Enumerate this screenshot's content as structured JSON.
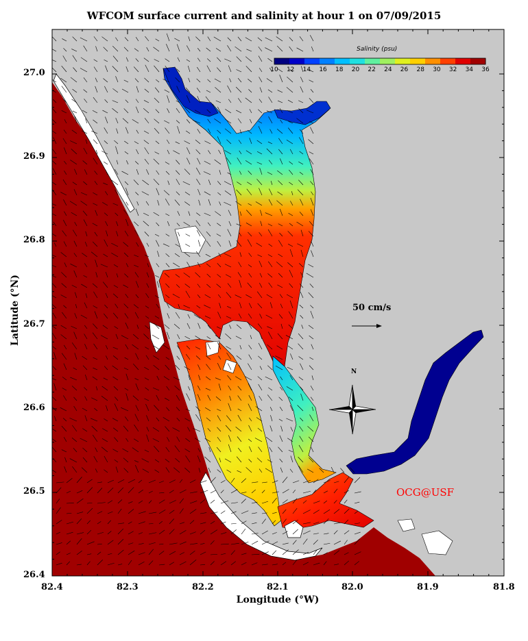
{
  "title": "WFCOM surface current and salinity at hour 1 on 07/09/2015",
  "xlabel": "Longitude (°W)",
  "ylabel": "Latitude (°N)",
  "x_ticks": [
    "82.4",
    "82.3",
    "82.2",
    "82.1",
    "82.0",
    "81.9",
    "81.8"
  ],
  "y_ticks": [
    "26.4",
    "26.5",
    "26.6",
    "26.7",
    "26.8",
    "26.9",
    "27.0"
  ],
  "colorbar": {
    "title": "Salinity (psu)",
    "labels": [
      "10",
      "12",
      "14",
      "16",
      "18",
      "20",
      "22",
      "24",
      "26",
      "28",
      "30",
      "32",
      "34",
      "36"
    ],
    "colors": [
      "#000080",
      "#0000c8",
      "#0040ff",
      "#0080ff",
      "#00bfff",
      "#20e0e0",
      "#60f0a0",
      "#a0f060",
      "#e0f020",
      "#ffd000",
      "#ff9000",
      "#ff4000",
      "#e00000",
      "#a00000"
    ]
  },
  "scale_label": "50 cm/s",
  "compass_label": "N",
  "credit": "OCG@USF",
  "colors": {
    "land": "#c8c8c8",
    "gulf": "#a00000",
    "credit": "#ff0000"
  }
}
